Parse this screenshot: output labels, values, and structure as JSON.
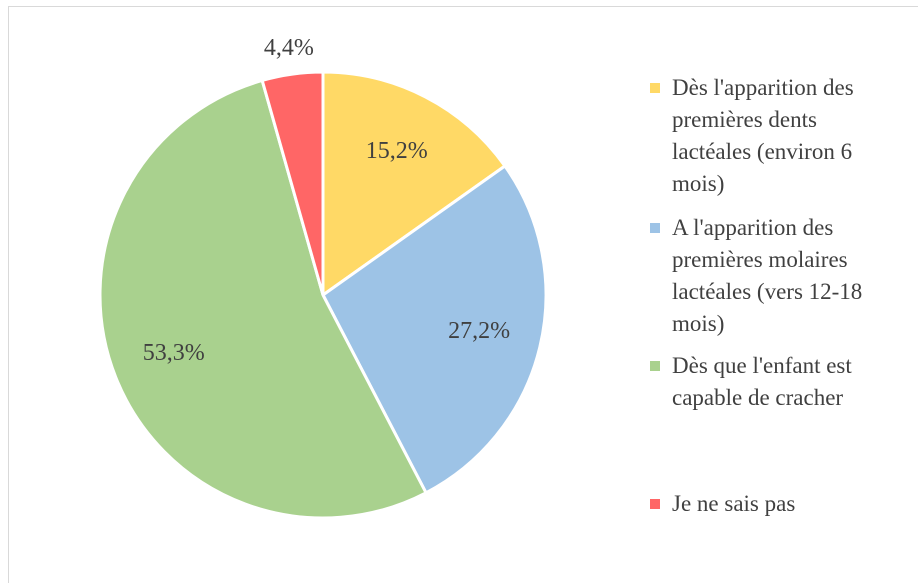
{
  "chart_data": {
    "type": "pie",
    "categories": [
      "Dès l'apparition des premières dents lactéales (environ 6 mois)",
      "A l'apparition des premières molaires lactéales (vers 12-18 mois)",
      "Dès que l'enfant est capable de cracher",
      "Je ne sais pas"
    ],
    "values": [
      15.2,
      27.2,
      53.3,
      4.4
    ],
    "value_labels": [
      "15,2%",
      "27,2%",
      "53,3%",
      "4,4%"
    ],
    "colors": [
      "#ffd966",
      "#9dc3e6",
      "#a9d18e",
      "#ff6666"
    ],
    "legend": "right"
  }
}
